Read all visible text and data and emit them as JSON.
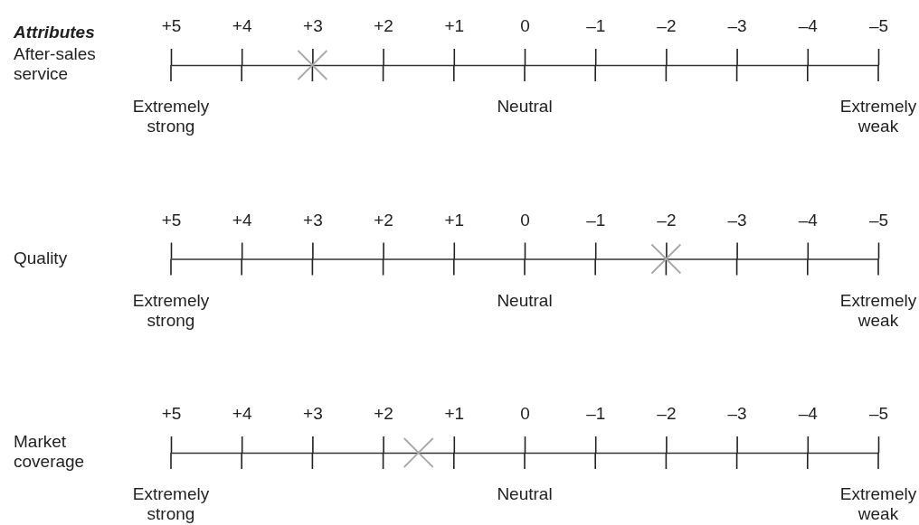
{
  "chart_data": {
    "type": "scatter",
    "ylabel": "Attributes",
    "orientation": "horizontal",
    "marker": "cross",
    "color": "#a8a8a8",
    "categories": [
      "After-sales service",
      "Quality",
      "Market coverage"
    ],
    "values": [
      3,
      -2,
      1.5
    ],
    "xlim": [
      5,
      -5
    ],
    "xticks": [
      {
        "value": 5,
        "label": "+5"
      },
      {
        "value": 4,
        "label": "+4"
      },
      {
        "value": 3,
        "label": "+3"
      },
      {
        "value": 2,
        "label": "+2"
      },
      {
        "value": 1,
        "label": "+1"
      },
      {
        "value": 0,
        "label": "0"
      },
      {
        "value": -1,
        "label": "–1"
      },
      {
        "value": -2,
        "label": "–2"
      },
      {
        "value": -3,
        "label": "–3"
      },
      {
        "value": -4,
        "label": "–4"
      },
      {
        "value": -5,
        "label": "–5"
      }
    ],
    "annotations": [
      "Extremely strong",
      "Neutral",
      "Extremely weak"
    ]
  }
}
